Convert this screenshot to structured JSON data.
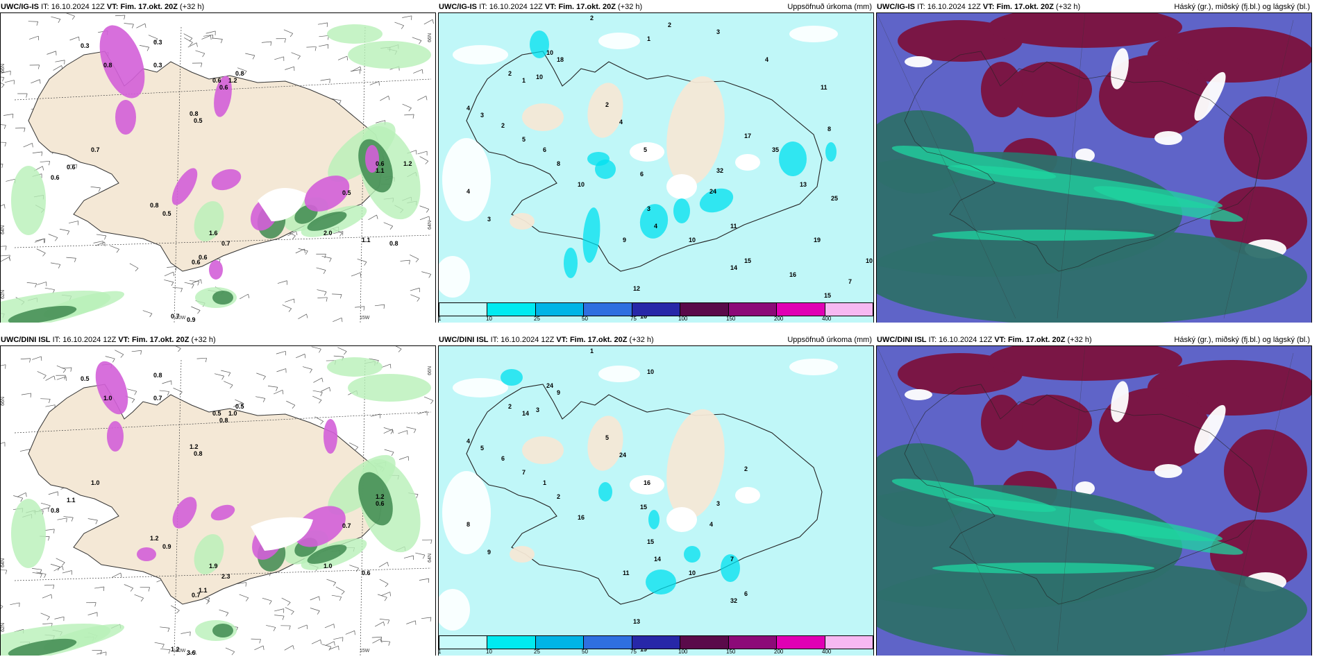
{
  "panels": [
    {
      "model": "UWC/IG-IS",
      "it_label": "IT:",
      "it_value": "16.10.2024 12Z",
      "vt_label": "VT: Fim. 17.okt. 20Z",
      "lead": "(+32 h)",
      "right_title": "",
      "type": "precip-type",
      "axis": {
        "lat1": "66N",
        "lat2": "64N",
        "lat3": "62N",
        "lon1": "20W",
        "lon2": "15W",
        "right1": "66N",
        "right2": "64N"
      }
    },
    {
      "model": "UWC/IG-IS",
      "it_label": "IT:",
      "it_value": "16.10.2024 12Z",
      "vt_label": "VT: Fim. 17.okt. 20Z",
      "lead": "(+32 h)",
      "right_title": "Uppsöfnuð úrkoma (mm)",
      "type": "accum"
    },
    {
      "model": "UWC/IG-IS",
      "it_label": "IT:",
      "it_value": "16.10.2024 12Z",
      "vt_label": "VT: Fim. 17.okt. 20Z",
      "lead": "(+32 h)",
      "right_title": "Háský (gr.), miðský (fj.bl.) og lágský (bl.)",
      "type": "clouds"
    },
    {
      "model": "UWC/DINI ISL",
      "it_label": "IT:",
      "it_value": "16.10.2024 12Z",
      "vt_label": "VT: Fim. 17.okt. 20Z",
      "lead": "(+32 h)",
      "right_title": "",
      "type": "precip-type",
      "axis": {
        "lat1": "66N",
        "lat2": "64N",
        "lat3": "62N",
        "lon1": "20W",
        "lon2": "15W",
        "right1": "66N",
        "right2": "64N"
      }
    },
    {
      "model": "UWC/DINI ISL",
      "it_label": "IT:",
      "it_value": "16.10.2024 12Z",
      "vt_label": "VT: Fim. 17.okt. 20Z",
      "lead": "(+32 h)",
      "right_title": "Uppsöfnuð úrkoma (mm)",
      "type": "accum"
    },
    {
      "model": "UWC/DINI ISL",
      "it_label": "IT:",
      "it_value": "16.10.2024 12Z",
      "vt_label": "VT: Fim. 17.okt. 20Z",
      "lead": "(+32 h)",
      "right_title": "Háský (gr.), miðský (fj.bl.) og lágský (bl.)",
      "type": "clouds"
    }
  ],
  "colorbar": {
    "labels": [
      "1",
      "10",
      "25",
      "50",
      "75",
      "100",
      "150",
      "200",
      "400"
    ],
    "colors": [
      "#c8fbfb",
      "#00eaf0",
      "#00b4e6",
      "#2f6fe0",
      "#2727a8",
      "#5a0a4a",
      "#8c0a78",
      "#e000b4",
      "#f7b8f2"
    ]
  },
  "colors": {
    "land": "#f4e8d6",
    "sea_accum": "#c0f7f8",
    "cloud_high": "#7a1645",
    "cloud_mid": "#5f64c8",
    "cloud_low": "#2e6f6b",
    "snow": "#d35fd8",
    "rain": "#3f8a50"
  },
  "values": {
    "p0": [
      "0.3",
      "0.8",
      "0.3",
      "0.3",
      "0.6",
      "0.6",
      "0.8",
      "0.5",
      "0.7",
      "0.6",
      "0.6",
      "0.8",
      "0.5",
      "0.6",
      "0.6",
      "0.8",
      "1.2",
      "1.1",
      "0.6",
      "0.5",
      "0.7",
      "0.9",
      "1.6",
      "0.7",
      "2.0",
      "1.1",
      "0.8",
      "1.2"
    ],
    "p1": [
      "2",
      "1",
      "18",
      "10",
      "2",
      "10",
      "4",
      "3",
      "2",
      "5",
      "4",
      "3",
      "6",
      "8",
      "10",
      "1",
      "2",
      "4",
      "5",
      "6",
      "3",
      "4",
      "9",
      "12",
      "16",
      "14",
      "15",
      "10",
      "11",
      "24",
      "32",
      "17",
      "35",
      "13",
      "25",
      "19",
      "16",
      "15",
      "7",
      "10",
      "8",
      "11",
      "4",
      "3",
      "2"
    ],
    "p3": [
      "0.5",
      "1.0",
      "0.8",
      "0.7",
      "0.8",
      "0.5",
      "1.2",
      "0.8",
      "1.0",
      "1.1",
      "0.8",
      "1.2",
      "0.9",
      "1.1",
      "0.7",
      "0.5",
      "1.0",
      "0.6",
      "1.2",
      "0.7",
      "1.2",
      "3.6",
      "1.9",
      "2.3",
      "1.0",
      "0.6"
    ],
    "p4": [
      "1",
      "10",
      "9",
      "24",
      "2",
      "3",
      "4",
      "5",
      "6",
      "7",
      "8",
      "9",
      "1",
      "2",
      "16",
      "14",
      "5",
      "24",
      "16",
      "15",
      "15",
      "14",
      "11",
      "13",
      "19",
      "32",
      "6",
      "10",
      "7",
      "4",
      "3",
      "2"
    ]
  }
}
